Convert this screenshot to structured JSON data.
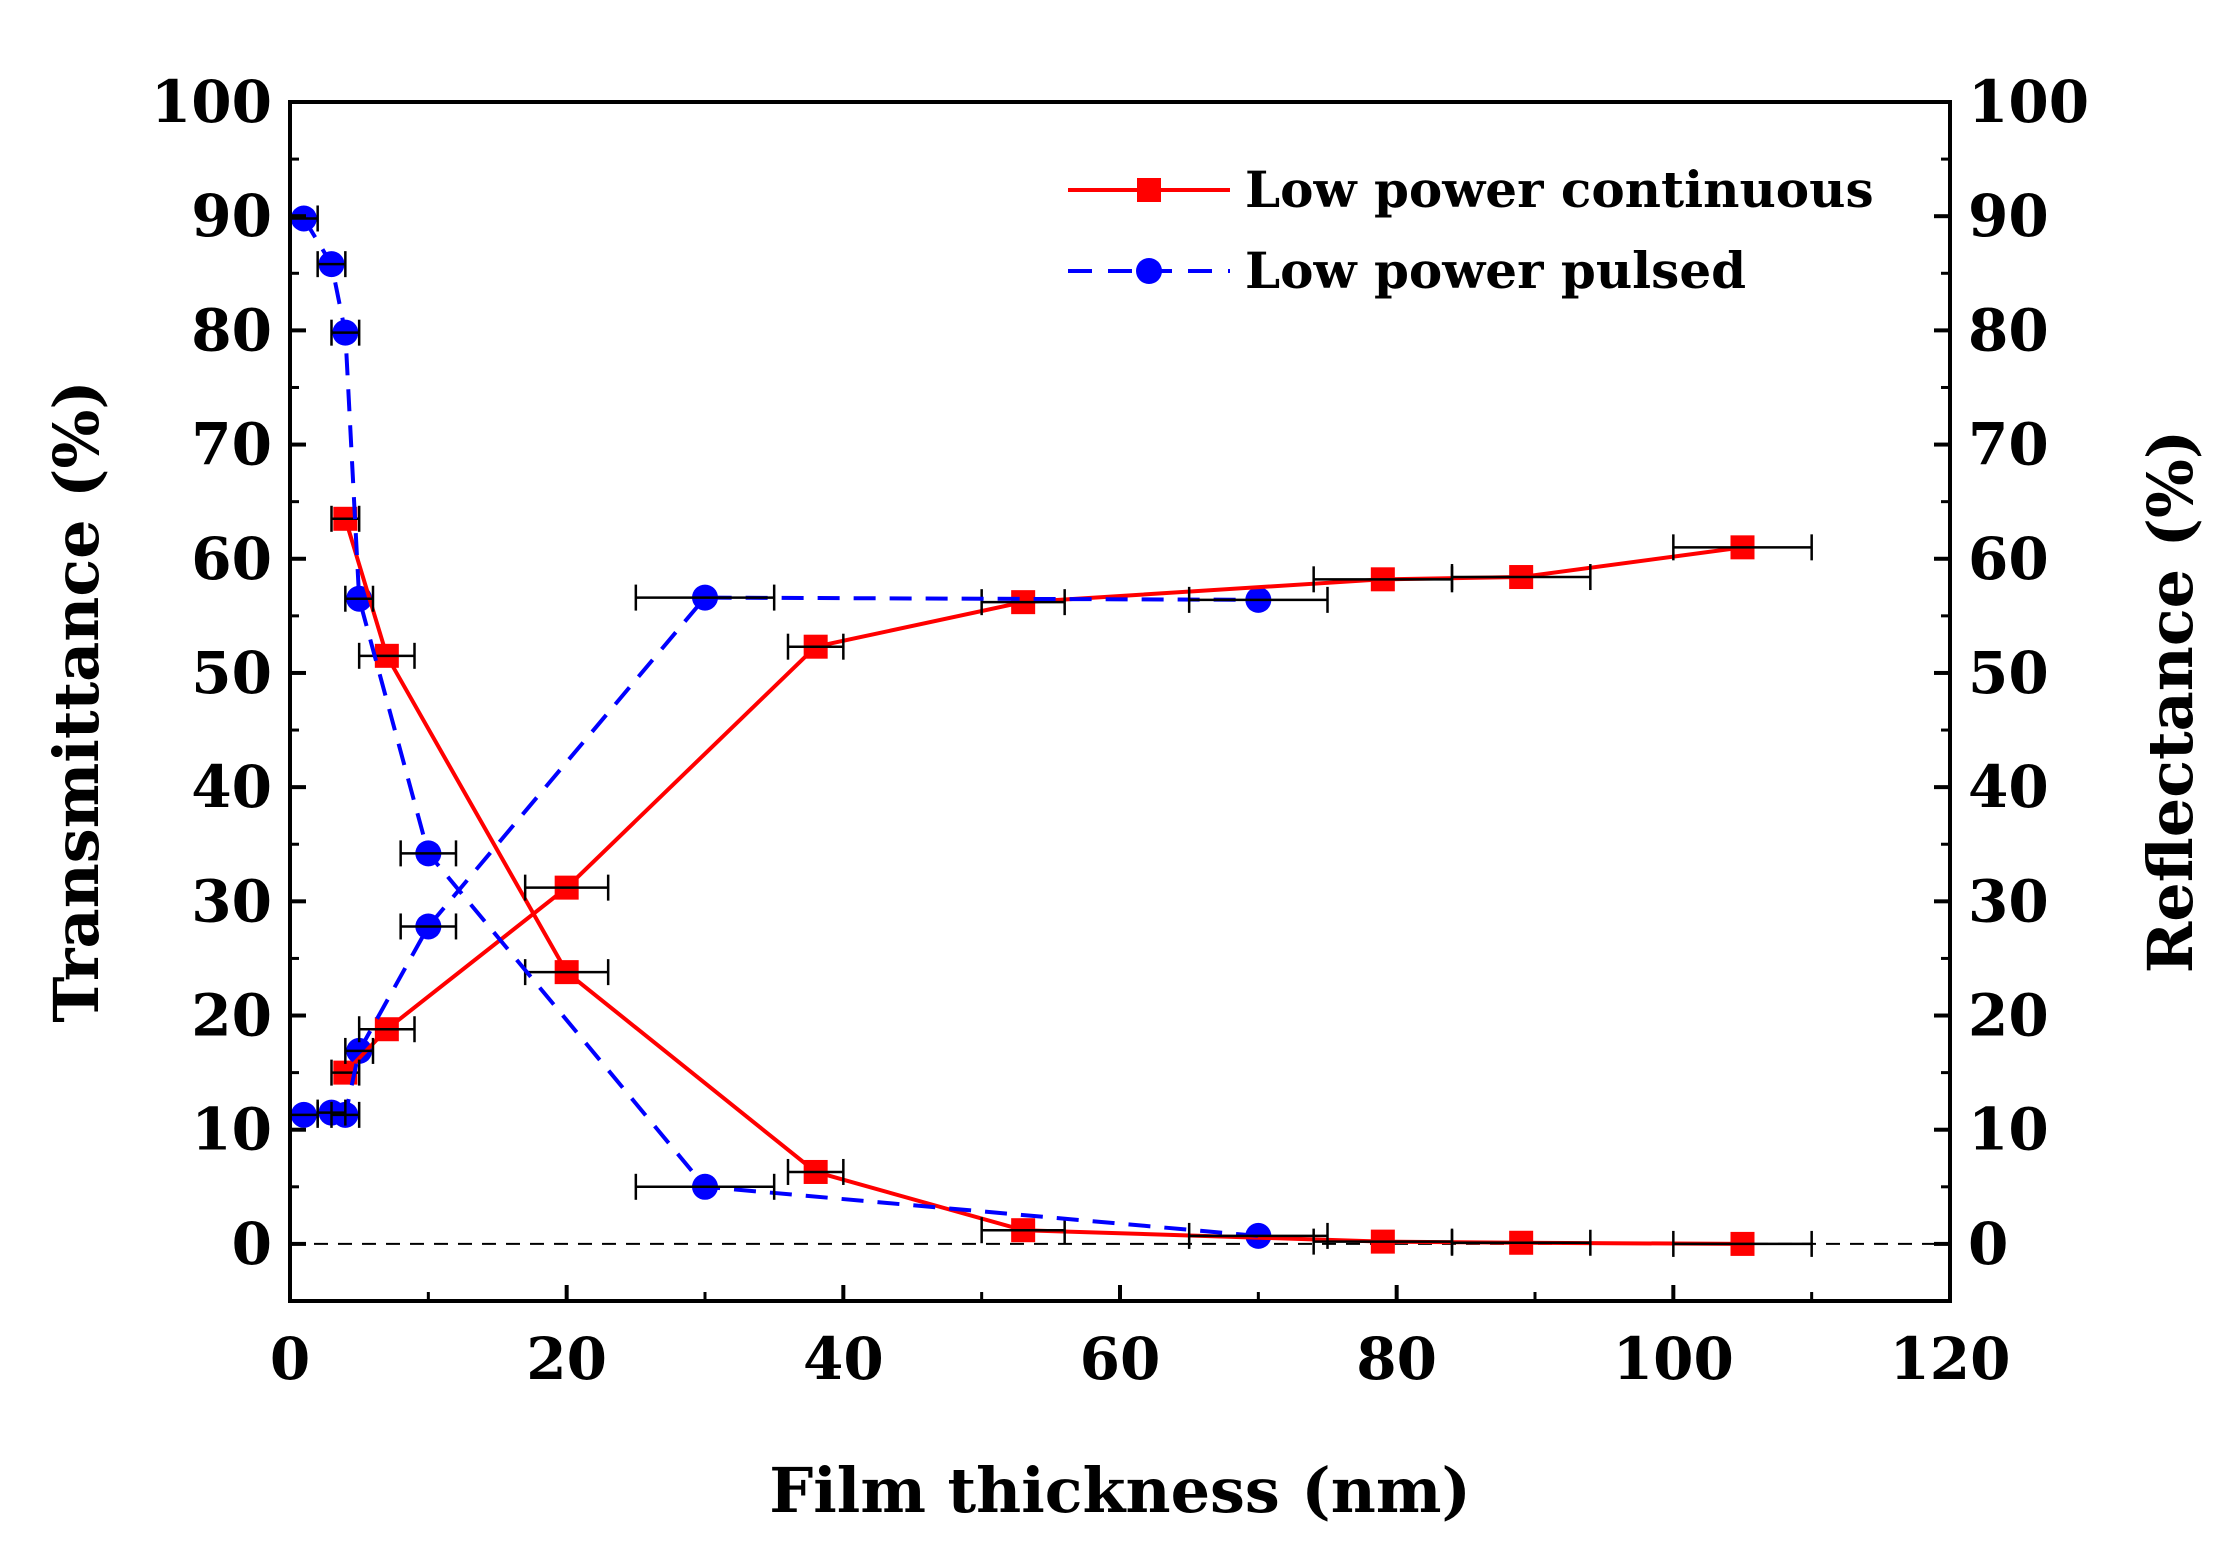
{
  "chart_data": {
    "type": "line",
    "xlabel": "Film thickness (nm)",
    "ylabel_left": "Transmittance (%)",
    "ylabel_right": "Reflectance (%)",
    "xlim": [
      0,
      120
    ],
    "ylim": [
      -5,
      100
    ],
    "x_ticks": [
      0,
      20,
      40,
      60,
      80,
      100,
      120
    ],
    "y_ticks": [
      0,
      10,
      20,
      30,
      40,
      50,
      60,
      70,
      80,
      90,
      100
    ],
    "reference_line_y": 0,
    "legend_position": "top-right",
    "series": [
      {
        "name": "Low power continuous",
        "color": "#ff0000",
        "line_style": "solid",
        "marker": "square",
        "curves": [
          {
            "quantity": "Transmittance",
            "points": [
              {
                "x": 4,
                "y": 63.5,
                "xerr": 1
              },
              {
                "x": 7,
                "y": 51.5,
                "xerr": 2
              },
              {
                "x": 20,
                "y": 23.8,
                "xerr": 3
              },
              {
                "x": 38,
                "y": 6.3,
                "xerr": 2
              },
              {
                "x": 53,
                "y": 1.2,
                "xerr": 3
              },
              {
                "x": 79,
                "y": 0.2,
                "xerr": 5
              },
              {
                "x": 89,
                "y": 0.1,
                "xerr": 5
              },
              {
                "x": 105,
                "y": 0.0,
                "xerr": 5
              }
            ]
          },
          {
            "quantity": "Reflectance",
            "points": [
              {
                "x": 4,
                "y": 15.0,
                "xerr": 1
              },
              {
                "x": 7,
                "y": 18.8,
                "xerr": 2
              },
              {
                "x": 20,
                "y": 31.2,
                "xerr": 3
              },
              {
                "x": 38,
                "y": 52.3,
                "xerr": 2
              },
              {
                "x": 53,
                "y": 56.2,
                "xerr": 3
              },
              {
                "x": 79,
                "y": 58.2,
                "xerr": 5
              },
              {
                "x": 89,
                "y": 58.4,
                "xerr": 5
              },
              {
                "x": 105,
                "y": 61.0,
                "xerr": 5
              }
            ]
          }
        ]
      },
      {
        "name": "Low power pulsed",
        "color": "#0000ff",
        "line_style": "dashed",
        "marker": "circle",
        "curves": [
          {
            "quantity": "Transmittance",
            "points": [
              {
                "x": 1,
                "y": 89.8,
                "xerr": 1
              },
              {
                "x": 3,
                "y": 85.8,
                "xerr": 1
              },
              {
                "x": 4,
                "y": 79.8,
                "xerr": 1
              },
              {
                "x": 5,
                "y": 56.5,
                "xerr": 1
              },
              {
                "x": 10,
                "y": 34.2,
                "xerr": 2
              },
              {
                "x": 30,
                "y": 5.0,
                "xerr": 5
              },
              {
                "x": 70,
                "y": 0.7,
                "xerr": 5
              }
            ]
          },
          {
            "quantity": "Reflectance",
            "points": [
              {
                "x": 1,
                "y": 11.3,
                "xerr": 1
              },
              {
                "x": 3,
                "y": 11.5,
                "xerr": 1
              },
              {
                "x": 4,
                "y": 11.3,
                "xerr": 1
              },
              {
                "x": 5,
                "y": 16.9,
                "xerr": 1
              },
              {
                "x": 10,
                "y": 27.8,
                "xerr": 2
              },
              {
                "x": 30,
                "y": 56.6,
                "xerr": 5
              },
              {
                "x": 70,
                "y": 56.4,
                "xerr": 5
              }
            ]
          }
        ]
      }
    ]
  }
}
